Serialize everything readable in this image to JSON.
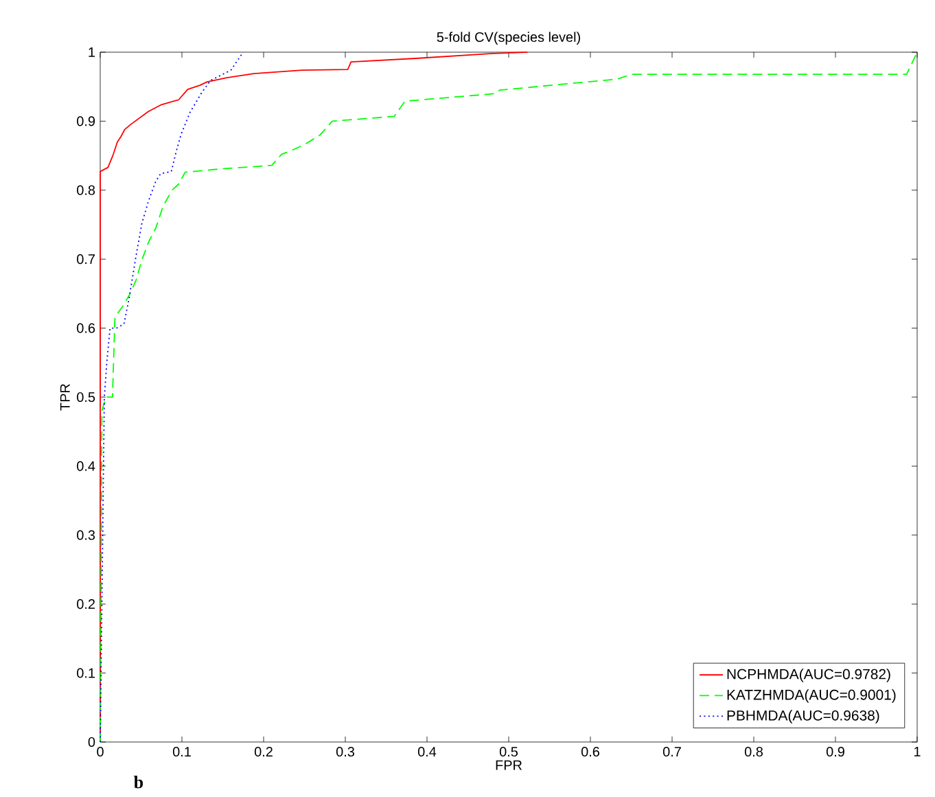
{
  "chart_data": {
    "type": "line",
    "title": "5-fold CV(species level)",
    "xlabel": "FPR",
    "ylabel": "TPR",
    "annotations": [
      "b"
    ],
    "xlim": [
      0,
      1
    ],
    "ylim": [
      0,
      1
    ],
    "xticks": [
      0,
      0.1,
      0.2,
      0.3,
      0.4,
      0.5,
      0.6,
      0.7,
      0.8,
      0.9,
      1
    ],
    "yticks": [
      0,
      0.1,
      0.2,
      0.3,
      0.4,
      0.5,
      0.6,
      0.7,
      0.8,
      0.9,
      1
    ],
    "grid": false,
    "legend": "bottom right",
    "marker": "none",
    "series": [
      {
        "name": "NCPHMDA(AUC=0.9782)",
        "color": "#ff0000",
        "line_style": "solid",
        "x": [
          0,
          0,
          0.0095,
          0.016,
          0.021,
          0.025,
          0.03,
          0.037,
          0.059,
          0.075,
          0.096,
          0.107,
          0.122,
          0.131,
          0.155,
          0.188,
          0.247,
          0.303,
          0.307,
          0.386,
          0.48,
          0.523
        ],
        "values": [
          0,
          0.827,
          0.833,
          0.852,
          0.87,
          0.877,
          0.888,
          0.895,
          0.914,
          0.924,
          0.931,
          0.946,
          0.952,
          0.957,
          0.963,
          0.969,
          0.974,
          0.975,
          0.986,
          0.991,
          0.998,
          1
        ]
      },
      {
        "name": "KATZHMDA(AUC=0.9001)",
        "color": "#00ff00",
        "line_style": "dashed",
        "x": [
          0,
          0.002,
          0.007,
          0.015,
          0.018,
          0.029,
          0.036,
          0.044,
          0.051,
          0.06,
          0.068,
          0.077,
          0.088,
          0.096,
          0.104,
          0.149,
          0.21,
          0.222,
          0.233,
          0.25,
          0.269,
          0.284,
          0.36,
          0.373,
          0.484,
          0.489,
          0.633,
          0.65,
          0.987,
          0.992,
          1
        ],
        "values": [
          0,
          0.48,
          0.5,
          0.5,
          0.616,
          0.634,
          0.649,
          0.67,
          0.699,
          0.727,
          0.745,
          0.777,
          0.8,
          0.809,
          0.826,
          0.831,
          0.836,
          0.852,
          0.857,
          0.866,
          0.88,
          0.9,
          0.907,
          0.929,
          0.94,
          0.945,
          0.961,
          0.968,
          0.968,
          0.98,
          1
        ]
      },
      {
        "name": "PBHMDA(AUC=0.9638)",
        "color": "#0000ff",
        "line_style": "dotted",
        "x": [
          0,
          0.005,
          0.008,
          0.012,
          0.02,
          0.029,
          0.035,
          0.04,
          0.044,
          0.051,
          0.059,
          0.068,
          0.074,
          0.087,
          0.093,
          0.099,
          0.11,
          0.124,
          0.135,
          0.16,
          0.172,
          0.175
        ],
        "values": [
          0,
          0.5,
          0.55,
          0.6,
          0.6,
          0.606,
          0.641,
          0.677,
          0.706,
          0.752,
          0.784,
          0.813,
          0.824,
          0.827,
          0.856,
          0.881,
          0.913,
          0.941,
          0.959,
          0.974,
          0.995,
          1
        ]
      }
    ]
  }
}
